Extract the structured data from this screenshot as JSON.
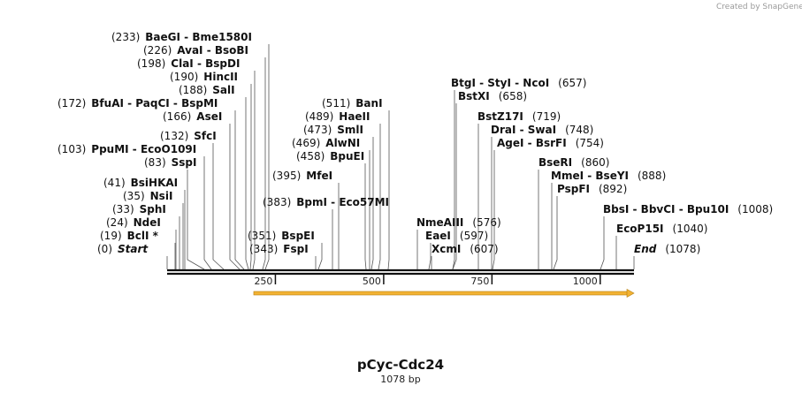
{
  "credit": "Created by SnapGene",
  "map": {
    "name": "pCyc-Cdc24",
    "length_label": "1078 bp",
    "length": 1078,
    "ticks": [
      "250",
      "500",
      "750",
      "1000"
    ],
    "feature_color": "#f2b233",
    "feature_start": 200,
    "feature_end": 1078
  },
  "sites": [
    {
      "pos": "(233)",
      "names": [
        "BaeGI",
        "Bme1580I"
      ]
    },
    {
      "pos": "(226)",
      "names": [
        "AvaI",
        "BsoBI"
      ]
    },
    {
      "pos": "(198)",
      "names": [
        "ClaI",
        "BspDI"
      ]
    },
    {
      "pos": "(190)",
      "names": [
        "HincII"
      ]
    },
    {
      "pos": "(188)",
      "names": [
        "SalI"
      ]
    },
    {
      "pos": "(172)",
      "names": [
        "BfuAI",
        "PaqCI",
        "BspMI"
      ]
    },
    {
      "pos": "(166)",
      "names": [
        "AseI"
      ]
    },
    {
      "pos": "(132)",
      "names": [
        "SfcI"
      ]
    },
    {
      "pos": "(103)",
      "names": [
        "PpuMI",
        "EcoO109I"
      ]
    },
    {
      "pos": "(83)",
      "names": [
        "SspI"
      ]
    },
    {
      "pos": "(41)",
      "names": [
        "BsiHKAI"
      ]
    },
    {
      "pos": "(35)",
      "names": [
        "NsiI"
      ]
    },
    {
      "pos": "(33)",
      "names": [
        "SphI"
      ]
    },
    {
      "pos": "(24)",
      "names": [
        "NdeI"
      ]
    },
    {
      "pos": "(19)",
      "names": [
        "BclI *"
      ]
    },
    {
      "pos": "(0)",
      "names": [
        "Start"
      ]
    },
    {
      "pos": "(511)",
      "names": [
        "BanI"
      ]
    },
    {
      "pos": "(489)",
      "names": [
        "HaeII"
      ]
    },
    {
      "pos": "(473)",
      "names": [
        "SmlI"
      ]
    },
    {
      "pos": "(469)",
      "names": [
        "AlwNI"
      ]
    },
    {
      "pos": "(458)",
      "names": [
        "BpuEI"
      ]
    },
    {
      "pos": "(395)",
      "names": [
        "MfeI"
      ]
    },
    {
      "pos": "(383)",
      "names": [
        "BpmI",
        "Eco57MI"
      ]
    },
    {
      "pos": "(351)",
      "names": [
        "BspEI"
      ]
    },
    {
      "pos": "(343)",
      "names": [
        "FspI"
      ]
    },
    {
      "pos": "(657)",
      "names": [
        "BtgI",
        "StyI",
        "NcoI"
      ]
    },
    {
      "pos": "(658)",
      "names": [
        "BstXI"
      ]
    },
    {
      "pos": "(719)",
      "names": [
        "BstZ17I"
      ]
    },
    {
      "pos": "(748)",
      "names": [
        "DraI",
        "SwaI"
      ]
    },
    {
      "pos": "(754)",
      "names": [
        "AgeI",
        "BsrFI"
      ]
    },
    {
      "pos": "(576)",
      "names": [
        "NmeAIII"
      ]
    },
    {
      "pos": "(597)",
      "names": [
        "EaeI"
      ]
    },
    {
      "pos": "(607)",
      "names": [
        "XcmI"
      ]
    },
    {
      "pos": "(860)",
      "names": [
        "BseRI"
      ]
    },
    {
      "pos": "(888)",
      "names": [
        "MmeI",
        "BseYI"
      ]
    },
    {
      "pos": "(892)",
      "names": [
        "PspFI"
      ]
    },
    {
      "pos": "(1008)",
      "names": [
        "BbsI",
        "BbvCI",
        "Bpu10I"
      ]
    },
    {
      "pos": "(1040)",
      "names": [
        "EcoP15I"
      ]
    },
    {
      "pos": "(1078)",
      "names": [
        "End"
      ]
    }
  ]
}
